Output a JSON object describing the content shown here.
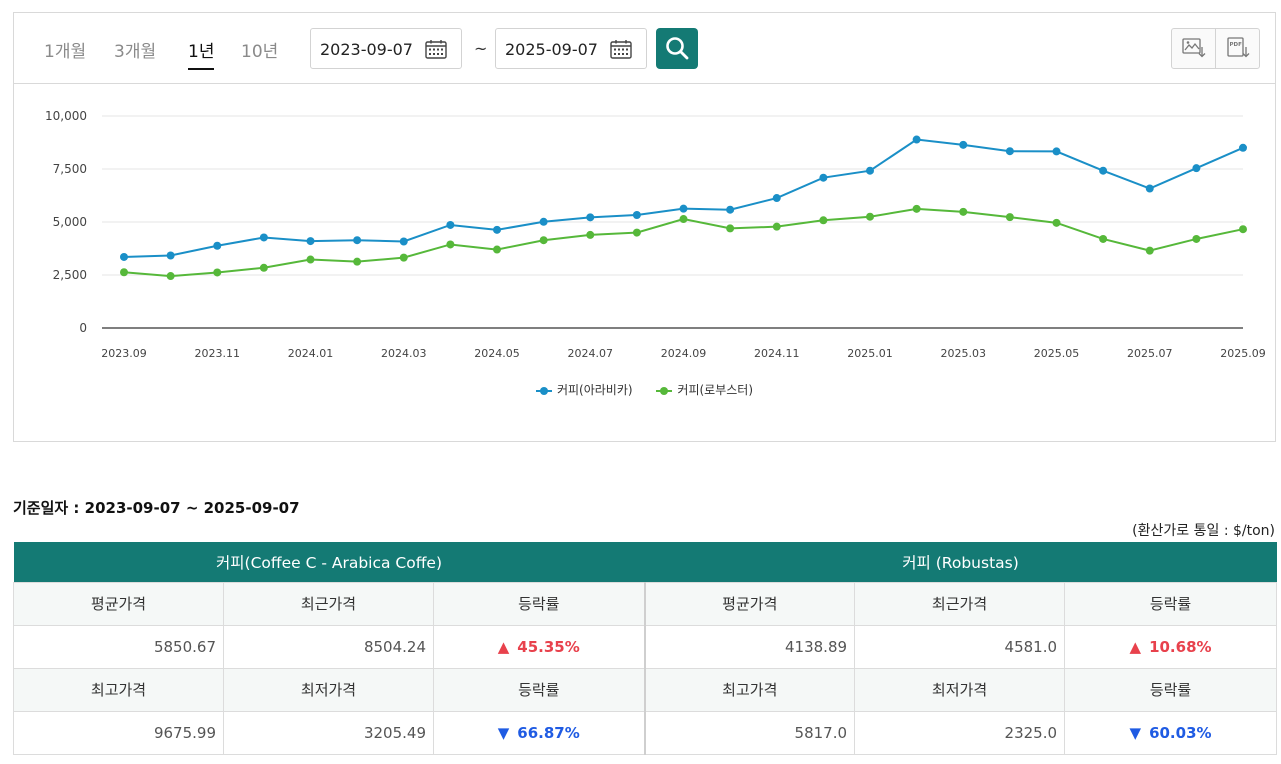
{
  "periods": {
    "p1m": "1개월",
    "p3m": "3개월",
    "p1y": "1년",
    "p10y": "10년",
    "active": "1년"
  },
  "dates": {
    "start": "2023-09-07",
    "separator": "~",
    "end": "2025-09-07"
  },
  "icons": {
    "calendar": "calendar-icon",
    "search": "search-icon",
    "image_download": "image-download-icon",
    "pdf_download": "pdf-download-icon"
  },
  "colors": {
    "accent": "#147a74",
    "arabica": "#1a8fc7",
    "robusta": "#56b83a",
    "up": "#e8414c",
    "down": "#1f5be3"
  },
  "chart_data": {
    "type": "line",
    "x": [
      "2023.09",
      "2023.10",
      "2023.11",
      "2023.12",
      "2024.01",
      "2024.02",
      "2024.03",
      "2024.04",
      "2024.05",
      "2024.06",
      "2024.07",
      "2024.08",
      "2024.09",
      "2024.10",
      "2024.11",
      "2024.12",
      "2025.01",
      "2025.02",
      "2025.03",
      "2025.04",
      "2025.05",
      "2025.06",
      "2025.07",
      "2025.08",
      "2025.09"
    ],
    "x_tick_labels": [
      "2023.09",
      "2023.11",
      "2024.01",
      "2024.03",
      "2024.05",
      "2024.07",
      "2024.09",
      "2024.11",
      "2025.01",
      "2025.03",
      "2025.05",
      "2025.07",
      "2025.09"
    ],
    "y_tick_labels": [
      "10,000",
      "7,500",
      "5,000",
      "2,500",
      "0"
    ],
    "ylim": [
      0,
      10000
    ],
    "grid": true,
    "legend_position": "bottom",
    "series": [
      {
        "name": "커피(아라비카)",
        "color": "#1a8fc7",
        "values": [
          3350,
          3420,
          3880,
          4270,
          4100,
          4140,
          4080,
          4860,
          4630,
          5010,
          5220,
          5330,
          5630,
          5580,
          6130,
          7090,
          7420,
          8890,
          8640,
          8340,
          8330,
          7420,
          6580,
          7540,
          8500
        ]
      },
      {
        "name": "커피(로부스터)",
        "color": "#56b83a",
        "values": [
          2630,
          2450,
          2620,
          2840,
          3230,
          3130,
          3320,
          3940,
          3700,
          4140,
          4390,
          4500,
          5140,
          4700,
          4780,
          5080,
          5250,
          5620,
          5480,
          5230,
          4960,
          4200,
          3650,
          4200,
          4660
        ]
      }
    ]
  },
  "summary": {
    "base_date_label": "기준일자 : 2023-09-07 ~ 2025-09-07",
    "unit_note": "(환산가로 통일 : $/ton)"
  },
  "table": {
    "group_arabica": "커피(Coffee C - Arabica Coffe)",
    "group_robusta": "커피 (Robustas)",
    "labels": {
      "avg": "평균가격",
      "recent": "최근가격",
      "change": "등락률",
      "high": "최고가격",
      "low": "최저가격"
    },
    "arabica": {
      "avg": "5850.67",
      "recent": "8504.24",
      "change_up": "45.35%",
      "high": "9675.99",
      "low": "3205.49",
      "change_down": "66.87%"
    },
    "robusta": {
      "avg": "4138.89",
      "recent": "4581.0",
      "change_up": "10.68%",
      "high": "5817.0",
      "low": "2325.0",
      "change_down": "60.03%"
    },
    "arrow_up": "▲",
    "arrow_down": "▼"
  }
}
